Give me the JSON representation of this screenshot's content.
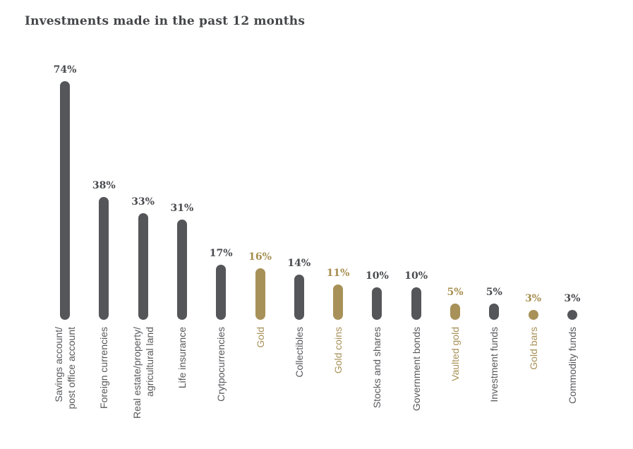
{
  "chart_data": {
    "type": "bar",
    "title": "Investments made in the past 12 months",
    "xlabel": "",
    "ylabel": "",
    "unit": "%",
    "grid": false,
    "legend": "none",
    "ylim": [
      0,
      80
    ],
    "orientation": "vertical-lollipop",
    "colors": {
      "bar_default": "#55565a",
      "bar_highlight_gold": "#a89158",
      "value_label_default": "#4a4b4f",
      "value_label_gold": "#a68e50",
      "category_label_default": "#58595c",
      "category_label_gold": "#a89158",
      "title": "#45464a",
      "background": "#ffffff"
    },
    "bars": [
      {
        "label": "Savings account/\npost office account",
        "value": 74,
        "display": "74%",
        "gold": false
      },
      {
        "label": "Foreign currencies",
        "value": 38,
        "display": "38%",
        "gold": false
      },
      {
        "label": "Real estate/property/\nagricultural land",
        "value": 33,
        "display": "33%",
        "gold": false
      },
      {
        "label": "Life insurance",
        "value": 31,
        "display": "31%",
        "gold": false
      },
      {
        "label": "Crytpocurrencies",
        "value": 17,
        "display": "17%",
        "gold": false
      },
      {
        "label": "Gold",
        "value": 16,
        "display": "16%",
        "gold": true
      },
      {
        "label": "Collectibles",
        "value": 14,
        "display": "14%",
        "gold": false
      },
      {
        "label": "Gold coins",
        "value": 11,
        "display": "11%",
        "gold": true
      },
      {
        "label": "Stocks and shares",
        "value": 10,
        "display": "10%",
        "gold": false
      },
      {
        "label": "Government bonds",
        "value": 10,
        "display": "10%",
        "gold": false
      },
      {
        "label": "Vaulted gold",
        "value": 5,
        "display": "5%",
        "gold": true
      },
      {
        "label": "Investment funds",
        "value": 5,
        "display": "5%",
        "gold": false
      },
      {
        "label": "Gold bars",
        "value": 3,
        "display": "3%",
        "gold": true
      },
      {
        "label": "Commodity funds",
        "value": 3,
        "display": "3%",
        "gold": false
      }
    ]
  }
}
